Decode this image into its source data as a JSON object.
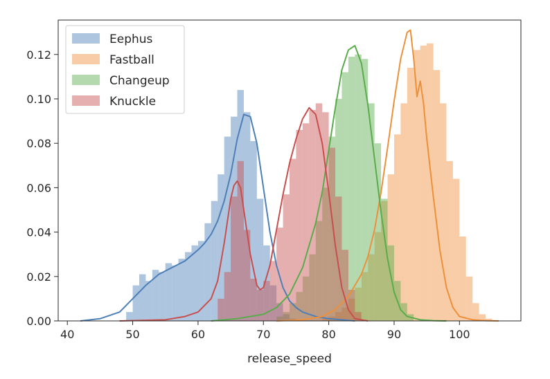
{
  "chart_data": {
    "type": "histogram",
    "xlabel": "release_speed",
    "ylabel": "",
    "xlim": [
      38.6,
      109.4
    ],
    "ylim": [
      0,
      0.1355
    ],
    "xticks": [
      40,
      50,
      60,
      70,
      80,
      90,
      100
    ],
    "xtick_labels": [
      "40",
      "50",
      "60",
      "70",
      "80",
      "90",
      "100"
    ],
    "yticks": [
      0,
      0.02,
      0.04,
      0.06,
      0.08,
      0.1,
      0.12
    ],
    "ytick_labels": [
      "0.00",
      "0.02",
      "0.04",
      "0.06",
      "0.08",
      "0.10",
      "0.12"
    ],
    "grid": false,
    "legend_position": "top-left",
    "series": [
      {
        "name": "Eephus",
        "color": "#4c7fb8",
        "bin_width": 1,
        "bins_start": 49,
        "hist": [
          0.004,
          0.016,
          0.021,
          0.018,
          0.023,
          0.022,
          0.026,
          0.025,
          0.028,
          0.031,
          0.034,
          0.036,
          0.044,
          0.054,
          0.066,
          0.083,
          0.092,
          0.104,
          0.094,
          0.081,
          0.055,
          0.034,
          0.016,
          0.008,
          0.003,
          0.001
        ],
        "kde_x": [
          42,
          45,
          48,
          50,
          52,
          54,
          56,
          58,
          60,
          61,
          62,
          63,
          64,
          65,
          66,
          67,
          68,
          69,
          70,
          71,
          72,
          73,
          74,
          75,
          76,
          78,
          80,
          82,
          84
        ],
        "kde_y": [
          0.0,
          0.001,
          0.004,
          0.01,
          0.016,
          0.021,
          0.024,
          0.027,
          0.032,
          0.035,
          0.039,
          0.045,
          0.054,
          0.066,
          0.082,
          0.093,
          0.092,
          0.08,
          0.06,
          0.04,
          0.025,
          0.015,
          0.009,
          0.006,
          0.004,
          0.002,
          0.001,
          0.0005,
          0.0
        ]
      },
      {
        "name": "Fastball",
        "color": "#ee8f3a",
        "bin_width": 1,
        "bins_start": 79,
        "hist": [
          0.001,
          0.002,
          0.004,
          0.006,
          0.01,
          0.015,
          0.022,
          0.03,
          0.04,
          0.054,
          0.066,
          0.084,
          0.098,
          0.114,
          0.122,
          0.124,
          0.125,
          0.113,
          0.098,
          0.072,
          0.064,
          0.038,
          0.02,
          0.008,
          0.003,
          0.001
        ],
        "kde_x": [
          72,
          76,
          79,
          81,
          83,
          85,
          86,
          87,
          88,
          89,
          90,
          91,
          92,
          92.5,
          93,
          93.5,
          94,
          94.5,
          95,
          96,
          97,
          98,
          99,
          100,
          102,
          104,
          106
        ],
        "kde_y": [
          0.0,
          0.0005,
          0.002,
          0.005,
          0.011,
          0.021,
          0.029,
          0.041,
          0.058,
          0.078,
          0.099,
          0.118,
          0.13,
          0.131,
          0.118,
          0.101,
          0.108,
          0.098,
          0.082,
          0.056,
          0.032,
          0.015,
          0.006,
          0.002,
          0.0005,
          0.0001,
          0.0
        ]
      },
      {
        "name": "Changeup",
        "color": "#5aab4c",
        "bin_width": 1,
        "bins_start": 72,
        "hist": [
          0.002,
          0.004,
          0.008,
          0.013,
          0.02,
          0.03,
          0.045,
          0.06,
          0.083,
          0.1,
          0.112,
          0.119,
          0.12,
          0.118,
          0.098,
          0.08,
          0.055,
          0.034,
          0.018,
          0.008,
          0.003
        ],
        "kde_x": [
          62,
          66,
          70,
          72,
          74,
          76,
          78,
          79,
          80,
          81,
          82,
          83,
          84,
          85,
          86,
          87,
          88,
          89,
          90,
          91,
          92,
          94,
          96,
          98
        ],
        "kde_y": [
          0.0,
          0.001,
          0.003,
          0.006,
          0.012,
          0.024,
          0.044,
          0.058,
          0.077,
          0.096,
          0.113,
          0.122,
          0.124,
          0.116,
          0.097,
          0.073,
          0.049,
          0.028,
          0.013,
          0.005,
          0.002,
          0.0005,
          0.0001,
          0.0
        ]
      },
      {
        "name": "Knuckle",
        "color": "#c84e4e",
        "bin_width": 1,
        "bins_start": 63,
        "hist": [
          0.01,
          0.022,
          0.056,
          0.072,
          0.041,
          0.019,
          0.014,
          0.018,
          0.027,
          0.042,
          0.057,
          0.073,
          0.086,
          0.089,
          0.095,
          0.098,
          0.094,
          0.078,
          0.056,
          0.032,
          0.014,
          0.004
        ],
        "kde_x": [
          48,
          55,
          58,
          60,
          62,
          63,
          64,
          65,
          65.5,
          66,
          66.5,
          67,
          68,
          69,
          69.5,
          70,
          71,
          72,
          73,
          74,
          75,
          76,
          77,
          78,
          79,
          80,
          81,
          82,
          83,
          84,
          86
        ],
        "kde_y": [
          0.0,
          0.0005,
          0.002,
          0.004,
          0.01,
          0.018,
          0.035,
          0.055,
          0.061,
          0.063,
          0.06,
          0.05,
          0.03,
          0.016,
          0.014,
          0.015,
          0.025,
          0.041,
          0.057,
          0.071,
          0.082,
          0.091,
          0.096,
          0.093,
          0.08,
          0.058,
          0.034,
          0.015,
          0.005,
          0.001,
          0.0
        ]
      }
    ]
  }
}
